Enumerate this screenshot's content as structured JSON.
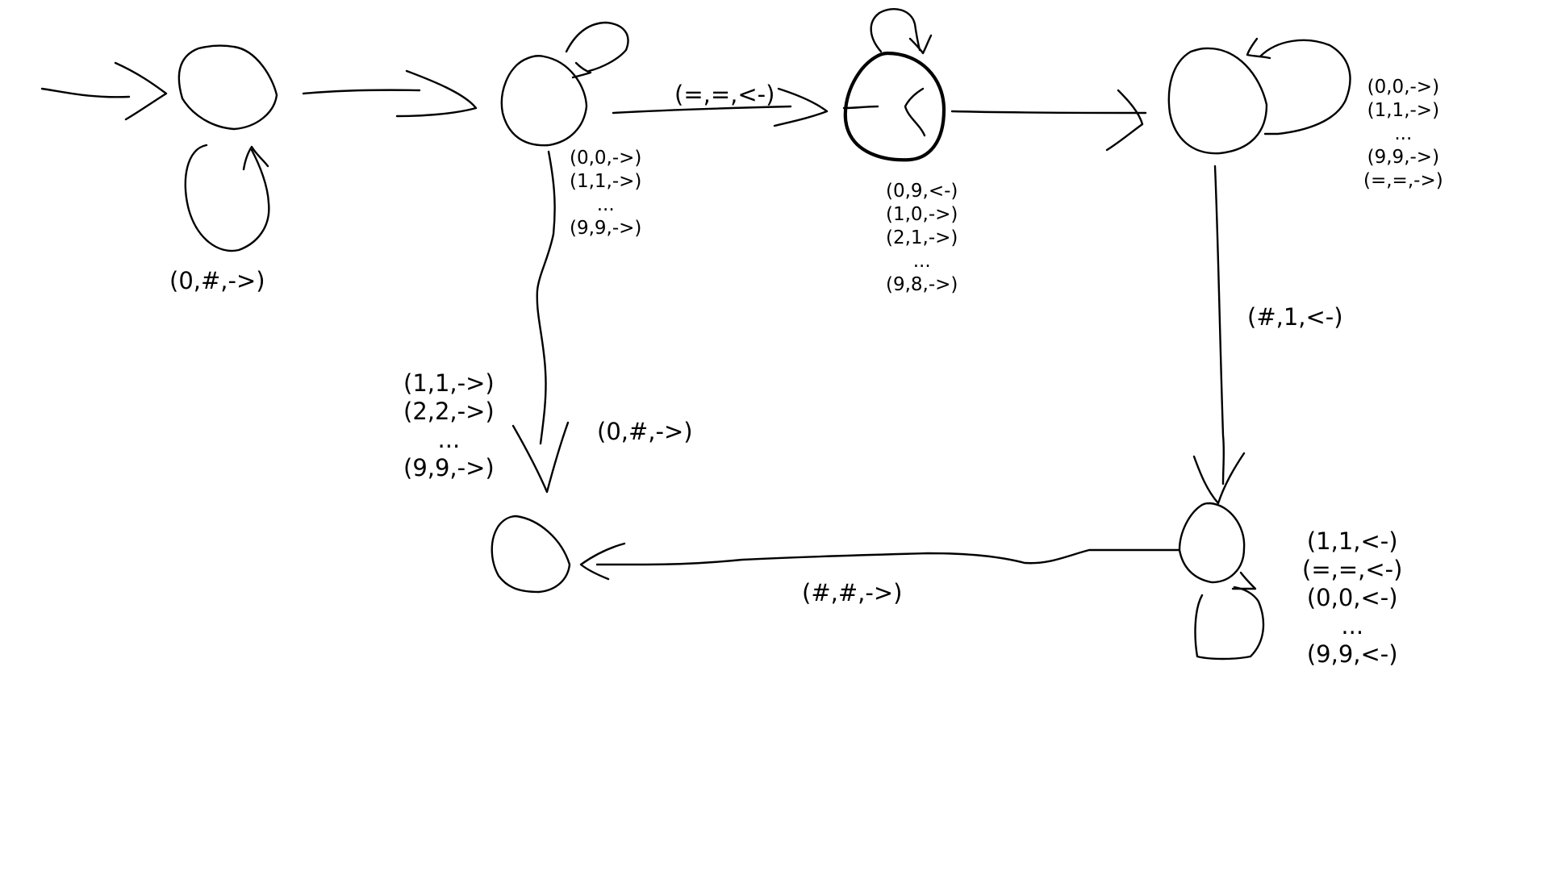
{
  "diagram": {
    "type": "state-machine",
    "states": [
      {
        "id": "s0",
        "role": "start"
      },
      {
        "id": "s1"
      },
      {
        "id": "s2",
        "role": "accept"
      },
      {
        "id": "s3"
      },
      {
        "id": "s4"
      },
      {
        "id": "s5"
      }
    ],
    "transitions": {
      "start_loop": [
        "(0,#,->)"
      ],
      "s1_loop": [
        "(0,0,->)",
        "(1,1,->)",
        "...",
        "(9,9,->)"
      ],
      "s1_to_s2": [
        "(=,=,<-)"
      ],
      "s2_loop": [
        "(0,9,<-)",
        "(1,0,->)",
        "(2,1,->)",
        "...",
        "(9,8,->)"
      ],
      "s3_loop": [
        "(0,0,->)",
        "(1,1,->)",
        "...",
        "(9,9,->)",
        "(=,=,->)"
      ],
      "s1_to_s5_a": [
        "(1,1,->)",
        "(2,2,->)",
        "...",
        "(9,9,->)"
      ],
      "s1_to_s5_b": [
        "(0,#,->)"
      ],
      "s3_to_s4": [
        "(#,1,<-)"
      ],
      "s4_loop": [
        "(1,1,<-)",
        "(=,=,<-)",
        "(0,0,<-)",
        "...",
        "(9,9,<-)"
      ],
      "s4_to_s5": [
        "(#,#,->)"
      ]
    }
  }
}
